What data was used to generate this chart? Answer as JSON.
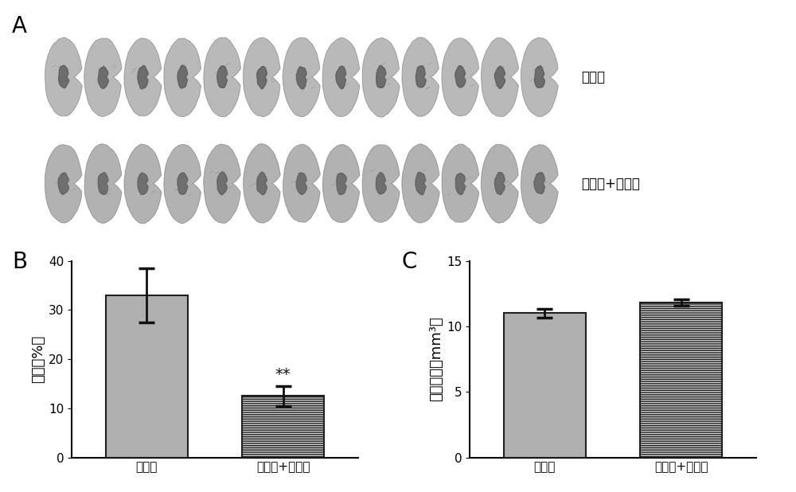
{
  "panel_A_label": "A",
  "panel_B_label": "B",
  "panel_C_label": "C",
  "label1": "脑出血",
  "label2": "脑出血+替洛隆",
  "bar_categories": [
    "脑出血",
    "脑出血+替洛隆"
  ],
  "B_values": [
    33.0,
    12.5
  ],
  "B_errors": [
    5.5,
    2.0
  ],
  "B_ylabel": "水肿（%）",
  "B_ylim": [
    0,
    40
  ],
  "B_yticks": [
    0,
    10,
    20,
    30,
    40
  ],
  "C_values": [
    11.0,
    11.8
  ],
  "C_errors": [
    0.35,
    0.25
  ],
  "C_ylabel": "出血体积（mm³）",
  "C_ylim": [
    0,
    15
  ],
  "C_yticks": [
    0,
    5,
    10,
    15
  ],
  "bar_color_solid": "#b0b0b0",
  "bar_color_hatched": "#d0d0d0",
  "bar_edgecolor": "#202020",
  "hatch_pattern": "------",
  "significance_text": "**",
  "background_color": "#ffffff",
  "tick_fontsize": 11,
  "axis_label_fontsize": 13,
  "panel_label_fontsize": 20
}
